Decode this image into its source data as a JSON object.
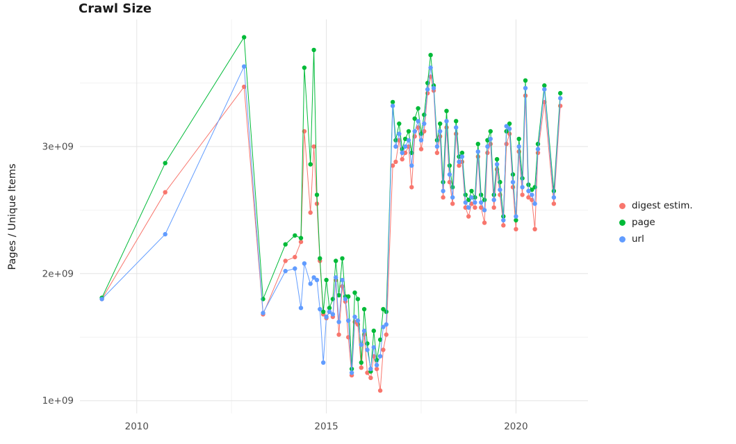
{
  "chart_data": {
    "type": "line",
    "title": "Crawl Size",
    "xlabel": "",
    "ylabel": "Pages / Unique Items",
    "legend_position": "right",
    "grid": true,
    "background_color": "#ffffff",
    "grid_major_color": "#e4e4e4",
    "grid_minor_color": "#f2f2f2",
    "axis_text_color": "#4d4d4d",
    "title_color": "#1a1a1a",
    "xlim": [
      2008.5,
      2021.9
    ],
    "ylim": [
      900000000.0,
      4000000000.0
    ],
    "x_ticks": [
      2010,
      2015,
      2020
    ],
    "x_tick_labels": [
      "2010",
      "2015",
      "2020"
    ],
    "x_minor_ticks": [
      2012.5,
      2017.5
    ],
    "y_ticks": [
      1000000000.0,
      2000000000.0,
      3000000000.0
    ],
    "y_tick_labels": [
      "1e+09",
      "2e+09",
      "3e+09"
    ],
    "y_minor_ticks": [
      1500000000.0,
      2500000000.0,
      3500000000.0
    ],
    "x_encoding": "decimal_year",
    "x": [
      2009.08,
      2010.75,
      2012.83,
      2013.33,
      2013.92,
      2014.17,
      2014.33,
      2014.42,
      2014.58,
      2014.67,
      2014.75,
      2014.83,
      2014.92,
      2015.0,
      2015.08,
      2015.17,
      2015.25,
      2015.33,
      2015.42,
      2015.5,
      2015.58,
      2015.67,
      2015.75,
      2015.83,
      2015.92,
      2016.0,
      2016.08,
      2016.17,
      2016.25,
      2016.33,
      2016.42,
      2016.5,
      2016.58,
      2016.75,
      2016.83,
      2016.92,
      2017.0,
      2017.08,
      2017.17,
      2017.25,
      2017.33,
      2017.42,
      2017.5,
      2017.58,
      2017.67,
      2017.75,
      2017.83,
      2017.92,
      2018.0,
      2018.08,
      2018.17,
      2018.25,
      2018.33,
      2018.42,
      2018.5,
      2018.58,
      2018.67,
      2018.75,
      2018.83,
      2018.92,
      2019.0,
      2019.08,
      2019.17,
      2019.25,
      2019.33,
      2019.42,
      2019.5,
      2019.58,
      2019.67,
      2019.75,
      2019.83,
      2019.92,
      2020.0,
      2020.08,
      2020.17,
      2020.25,
      2020.33,
      2020.42,
      2020.5,
      2020.58,
      2020.75,
      2021.0,
      2021.17
    ],
    "series": [
      {
        "key": "digest",
        "name": "digest estim.",
        "color": "#F8766D",
        "values": [
          1800000000.0,
          2640000000.0,
          3470000000.0,
          1680000000.0,
          2100000000.0,
          2130000000.0,
          2250000000.0,
          3120000000.0,
          2480000000.0,
          3000000000.0,
          2550000000.0,
          2100000000.0,
          1680000000.0,
          1650000000.0,
          1700000000.0,
          1660000000.0,
          1950000000.0,
          1520000000.0,
          1900000000.0,
          1780000000.0,
          1500000000.0,
          1200000000.0,
          1620000000.0,
          1600000000.0,
          1260000000.0,
          1520000000.0,
          1220000000.0,
          1180000000.0,
          1350000000.0,
          1250000000.0,
          1080000000.0,
          1400000000.0,
          1520000000.0,
          2850000000.0,
          2880000000.0,
          3050000000.0,
          2900000000.0,
          2950000000.0,
          3000000000.0,
          2680000000.0,
          3080000000.0,
          3150000000.0,
          2980000000.0,
          3120000000.0,
          3420000000.0,
          3550000000.0,
          3440000000.0,
          2950000000.0,
          3080000000.0,
          2600000000.0,
          3150000000.0,
          2720000000.0,
          2550000000.0,
          3100000000.0,
          2850000000.0,
          2880000000.0,
          2520000000.0,
          2450000000.0,
          2550000000.0,
          2520000000.0,
          2920000000.0,
          2520000000.0,
          2400000000.0,
          2950000000.0,
          3020000000.0,
          2520000000.0,
          2820000000.0,
          2620000000.0,
          2380000000.0,
          3020000000.0,
          3100000000.0,
          2680000000.0,
          2350000000.0,
          2960000000.0,
          2620000000.0,
          3400000000.0,
          2600000000.0,
          2580000000.0,
          2350000000.0,
          2950000000.0,
          3350000000.0,
          2550000000.0,
          3320000000.0
        ]
      },
      {
        "key": "page",
        "name": "page",
        "color": "#00BA38",
        "values": [
          1810000000.0,
          2870000000.0,
          3860000000.0,
          1800000000.0,
          2230000000.0,
          2300000000.0,
          2280000000.0,
          3620000000.0,
          2860000000.0,
          3760000000.0,
          2620000000.0,
          2120000000.0,
          1700000000.0,
          1950000000.0,
          1730000000.0,
          1800000000.0,
          2100000000.0,
          1830000000.0,
          2120000000.0,
          1820000000.0,
          1820000000.0,
          1250000000.0,
          1850000000.0,
          1800000000.0,
          1300000000.0,
          1720000000.0,
          1450000000.0,
          1230000000.0,
          1550000000.0,
          1320000000.0,
          1480000000.0,
          1720000000.0,
          1700000000.0,
          3350000000.0,
          3050000000.0,
          3180000000.0,
          2980000000.0,
          3060000000.0,
          3120000000.0,
          2950000000.0,
          3220000000.0,
          3300000000.0,
          3100000000.0,
          3250000000.0,
          3500000000.0,
          3720000000.0,
          3480000000.0,
          3050000000.0,
          3180000000.0,
          2720000000.0,
          3280000000.0,
          2850000000.0,
          2680000000.0,
          3200000000.0,
          2920000000.0,
          2950000000.0,
          2620000000.0,
          2580000000.0,
          2650000000.0,
          2600000000.0,
          3020000000.0,
          2620000000.0,
          2580000000.0,
          3050000000.0,
          3120000000.0,
          2620000000.0,
          2900000000.0,
          2720000000.0,
          2450000000.0,
          3120000000.0,
          3180000000.0,
          2780000000.0,
          2420000000.0,
          3060000000.0,
          2750000000.0,
          3520000000.0,
          2700000000.0,
          2660000000.0,
          2680000000.0,
          3020000000.0,
          3480000000.0,
          2650000000.0,
          3420000000.0
        ]
      },
      {
        "key": "url",
        "name": "url",
        "color": "#619CFF",
        "values": [
          1800000000.0,
          2310000000.0,
          3630000000.0,
          1690000000.0,
          2020000000.0,
          2040000000.0,
          1730000000.0,
          2080000000.0,
          1920000000.0,
          1970000000.0,
          1950000000.0,
          1720000000.0,
          1300000000.0,
          1660000000.0,
          1700000000.0,
          1680000000.0,
          1970000000.0,
          1620000000.0,
          1950000000.0,
          1800000000.0,
          1630000000.0,
          1220000000.0,
          1660000000.0,
          1630000000.0,
          1440000000.0,
          1550000000.0,
          1400000000.0,
          1250000000.0,
          1420000000.0,
          1280000000.0,
          1350000000.0,
          1580000000.0,
          1600000000.0,
          3320000000.0,
          3000000000.0,
          3100000000.0,
          2950000000.0,
          3000000000.0,
          3050000000.0,
          2850000000.0,
          3120000000.0,
          3200000000.0,
          3050000000.0,
          3180000000.0,
          3450000000.0,
          3620000000.0,
          3460000000.0,
          3000000000.0,
          3120000000.0,
          2650000000.0,
          3200000000.0,
          2780000000.0,
          2600000000.0,
          3150000000.0,
          2880000000.0,
          2920000000.0,
          2560000000.0,
          2520000000.0,
          2600000000.0,
          2560000000.0,
          2960000000.0,
          2560000000.0,
          2500000000.0,
          3000000000.0,
          3060000000.0,
          2580000000.0,
          2860000000.0,
          2660000000.0,
          2420000000.0,
          3160000000.0,
          3140000000.0,
          2720000000.0,
          2450000000.0,
          3000000000.0,
          2680000000.0,
          3460000000.0,
          2650000000.0,
          2620000000.0,
          2550000000.0,
          2980000000.0,
          3450000000.0,
          2600000000.0,
          3380000000.0
        ]
      }
    ]
  }
}
